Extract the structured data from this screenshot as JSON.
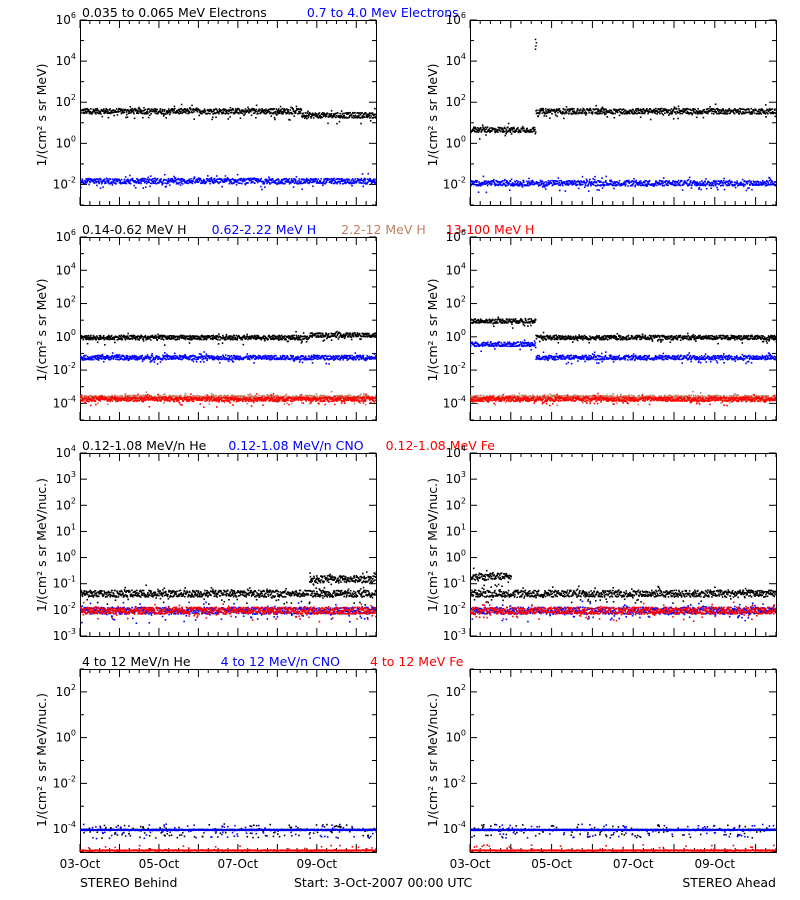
{
  "legends": {
    "electrons": [
      {
        "text": "0.035 to 0.065 MeV Electrons",
        "color": "#000000"
      },
      {
        "text": "0.7 to 4.0 Mev Electrons",
        "color": "#0000ff"
      }
    ],
    "protons": [
      {
        "text": "0.14-0.62 MeV H",
        "color": "#000000"
      },
      {
        "text": "0.62-2.22 MeV H",
        "color": "#0000ff"
      },
      {
        "text": "2.2-12 MeV H",
        "color": "#c08060"
      },
      {
        "text": "13-100 MeV H",
        "color": "#ff0000"
      }
    ],
    "low_ions": [
      {
        "text": "0.12-1.08 MeV/n He",
        "color": "#000000"
      },
      {
        "text": "0.12-1.08 MeV/n CNO",
        "color": "#0000ff"
      },
      {
        "text": "0.12-1.08 MeV Fe",
        "color": "#ff0000"
      }
    ],
    "high_ions": [
      {
        "text": "4 to 12 MeV/n He",
        "color": "#000000"
      },
      {
        "text": "4 to 12 MeV/n CNO",
        "color": "#0000ff"
      },
      {
        "text": "4 to 12 MeV Fe",
        "color": "#ff0000"
      }
    ]
  },
  "ylabels": {
    "rows_1_2": "1/(cm² s sr MeV)",
    "rows_3_4": "1/(cm² s sr MeV/nuc.)"
  },
  "footer": {
    "left": "STEREO Behind",
    "center": "Start:  3-Oct-2007 00:00 UTC",
    "right": "STEREO Ahead"
  },
  "colors": {
    "black": "#000000",
    "blue": "#0000ff",
    "tan": "#c08060",
    "red": "#ff0000"
  },
  "chart_data": [
    {
      "id": "behind-electrons",
      "type": "scatter",
      "log_y": true,
      "ylim_exp": [
        -3,
        6
      ],
      "y_tick_exponents": [
        -2,
        0,
        2,
        4,
        6
      ],
      "x": [
        "03-Oct",
        "05-Oct",
        "07-Oct",
        "09-Oct"
      ],
      "xlim_days": [
        0,
        7.5
      ],
      "series": [
        {
          "name": "0.035 to 0.065 MeV Electrons",
          "color": "#000000",
          "approx_values": [
            {
              "day_range": [
                0,
                5.6
              ],
              "log10_flux": 1.6
            },
            {
              "day_range": [
                5.6,
                7.5
              ],
              "log10_flux": 1.4
            }
          ]
        },
        {
          "name": "0.7 to 4.0 Mev Electrons",
          "color": "#0000ff",
          "approx_values": [
            {
              "day_range": [
                0,
                7.5
              ],
              "log10_flux": -1.8
            }
          ]
        }
      ]
    },
    {
      "id": "ahead-electrons",
      "type": "scatter",
      "log_y": true,
      "ylim_exp": [
        -3,
        6
      ],
      "y_tick_exponents": [
        -2,
        0,
        2,
        4,
        6
      ],
      "x": [
        "03-Oct",
        "05-Oct",
        "07-Oct",
        "09-Oct"
      ],
      "xlim_days": [
        0,
        7.5
      ],
      "series": [
        {
          "name": "0.035 to 0.065 MeV Electrons",
          "color": "#000000",
          "approx_values": [
            {
              "day_range": [
                0,
                1.6
              ],
              "log10_flux": 0.7
            },
            {
              "day_range": [
                1.6,
                7.5
              ],
              "log10_flux": 1.6
            },
            {
              "day": 1.6,
              "log10_flux": 5.0
            }
          ]
        },
        {
          "name": "0.7 to 4.0 Mev Electrons",
          "color": "#0000ff",
          "approx_values": [
            {
              "day_range": [
                0,
                7.5
              ],
              "log10_flux": -1.9
            }
          ]
        }
      ]
    },
    {
      "id": "behind-protons",
      "type": "scatter",
      "log_y": true,
      "ylim_exp": [
        -5,
        6
      ],
      "y_tick_exponents": [
        -4,
        -2,
        0,
        2,
        4,
        6
      ],
      "x": [
        "03-Oct",
        "05-Oct",
        "07-Oct",
        "09-Oct"
      ],
      "xlim_days": [
        0,
        7.5
      ],
      "series": [
        {
          "name": "0.14-0.62 MeV H",
          "color": "#000000",
          "approx_values": [
            {
              "day_range": [
                0,
                5.8
              ],
              "log10_flux": 0.0
            },
            {
              "day_range": [
                5.8,
                7.5
              ],
              "log10_flux": 0.15
            }
          ]
        },
        {
          "name": "0.62-2.22 MeV H",
          "color": "#0000ff",
          "approx_values": [
            {
              "day_range": [
                0,
                7.5
              ],
              "log10_flux": -1.2
            }
          ]
        },
        {
          "name": "2.2-12 MeV H",
          "color": "#c08060",
          "approx_values": [
            {
              "day_range": [
                0,
                7.5
              ],
              "log10_flux": -3.6
            }
          ]
        },
        {
          "name": "13-100 MeV H",
          "color": "#ff0000",
          "approx_values": [
            {
              "day_range": [
                0,
                7.5
              ],
              "log10_flux": -3.7
            }
          ]
        }
      ]
    },
    {
      "id": "ahead-protons",
      "type": "scatter",
      "log_y": true,
      "ylim_exp": [
        -5,
        6
      ],
      "y_tick_exponents": [
        -4,
        -2,
        0,
        2,
        4,
        6
      ],
      "x": [
        "03-Oct",
        "05-Oct",
        "07-Oct",
        "09-Oct"
      ],
      "xlim_days": [
        0,
        7.5
      ],
      "series": [
        {
          "name": "0.14-0.62 MeV H",
          "color": "#000000",
          "approx_values": [
            {
              "day_range": [
                0,
                1.6
              ],
              "log10_flux": 1.0
            },
            {
              "day_range": [
                1.6,
                7.5
              ],
              "log10_flux": 0.0
            }
          ]
        },
        {
          "name": "0.62-2.22 MeV H",
          "color": "#0000ff",
          "approx_values": [
            {
              "day_range": [
                0,
                1.6
              ],
              "log10_flux": -0.4
            },
            {
              "day_range": [
                1.6,
                7.5
              ],
              "log10_flux": -1.2
            }
          ]
        },
        {
          "name": "2.2-12 MeV H",
          "color": "#c08060",
          "approx_values": [
            {
              "day_range": [
                0,
                7.5
              ],
              "log10_flux": -3.6
            }
          ]
        },
        {
          "name": "13-100 MeV H",
          "color": "#ff0000",
          "approx_values": [
            {
              "day_range": [
                0,
                7.5
              ],
              "log10_flux": -3.7
            }
          ]
        }
      ]
    },
    {
      "id": "behind-low-ions",
      "type": "scatter",
      "log_y": true,
      "ylim_exp": [
        -3,
        4
      ],
      "y_tick_exponents": [
        -3,
        -2,
        -1,
        0,
        1,
        2,
        3,
        4
      ],
      "x": [
        "03-Oct",
        "05-Oct",
        "07-Oct",
        "09-Oct"
      ],
      "xlim_days": [
        0,
        7.5
      ],
      "series": [
        {
          "name": "0.12-1.08 MeV/n He",
          "color": "#000000",
          "approx_values": [
            {
              "day_range": [
                0,
                7.5
              ],
              "log10_flux": -1.35
            },
            {
              "day_range": [
                5.8,
                7.5
              ],
              "log10_flux": -0.8
            }
          ]
        },
        {
          "name": "0.12-1.08 MeV/n CNO",
          "color": "#0000ff",
          "approx_values": [
            {
              "day_range": [
                0,
                7.5
              ],
              "log10_flux": -2.0
            }
          ]
        },
        {
          "name": "0.12-1.08 MeV Fe",
          "color": "#ff0000",
          "approx_values": [
            {
              "day_range": [
                0,
                7.5
              ],
              "log10_flux": -2.0
            }
          ]
        }
      ]
    },
    {
      "id": "ahead-low-ions",
      "type": "scatter",
      "log_y": true,
      "ylim_exp": [
        -3,
        4
      ],
      "y_tick_exponents": [
        -3,
        -2,
        -1,
        0,
        1,
        2,
        3,
        4
      ],
      "x": [
        "03-Oct",
        "05-Oct",
        "07-Oct",
        "09-Oct"
      ],
      "xlim_days": [
        0,
        7.5
      ],
      "series": [
        {
          "name": "0.12-1.08 MeV/n He",
          "color": "#000000",
          "approx_values": [
            {
              "day_range": [
                0,
                1.0
              ],
              "log10_flux": -0.7
            },
            {
              "day_range": [
                0,
                7.5
              ],
              "log10_flux": -1.35
            }
          ]
        },
        {
          "name": "0.12-1.08 MeV/n CNO",
          "color": "#0000ff",
          "approx_values": [
            {
              "day_range": [
                0,
                7.5
              ],
              "log10_flux": -2.0
            }
          ]
        },
        {
          "name": "0.12-1.08 MeV Fe",
          "color": "#ff0000",
          "approx_values": [
            {
              "day_range": [
                0,
                7.5
              ],
              "log10_flux": -2.0
            }
          ]
        }
      ]
    },
    {
      "id": "behind-high-ions",
      "type": "scatter",
      "log_y": true,
      "ylim_exp": [
        -5,
        3
      ],
      "y_tick_exponents": [
        -4,
        -2,
        0,
        2
      ],
      "x": [
        "03-Oct",
        "05-Oct",
        "07-Oct",
        "09-Oct"
      ],
      "xlim_days": [
        0,
        7.5
      ],
      "series": [
        {
          "name": "4 to 12 MeV/n He",
          "color": "#000000",
          "approx_values": [
            {
              "day_range": [
                0,
                7.5
              ],
              "log10_flux": -4.0
            }
          ]
        },
        {
          "name": "4 to 12 MeV/n CNO",
          "color": "#0000ff",
          "approx_values": [
            {
              "day_range": [
                0,
                7.5
              ],
              "log10_flux": -4.0
            }
          ]
        },
        {
          "name": "4 to 12 MeV Fe",
          "color": "#ff0000",
          "approx_values": [
            {
              "day_range": [
                0,
                7.5
              ],
              "log10_flux": -4.9
            }
          ]
        }
      ]
    },
    {
      "id": "ahead-high-ions",
      "type": "scatter",
      "log_y": true,
      "ylim_exp": [
        -5,
        3
      ],
      "y_tick_exponents": [
        -4,
        -2,
        0,
        2
      ],
      "x": [
        "03-Oct",
        "05-Oct",
        "07-Oct",
        "09-Oct"
      ],
      "xlim_days": [
        0,
        7.5
      ],
      "series": [
        {
          "name": "4 to 12 MeV/n He",
          "color": "#000000",
          "approx_values": [
            {
              "day_range": [
                0,
                7.5
              ],
              "log10_flux": -4.0
            }
          ]
        },
        {
          "name": "4 to 12 MeV/n CNO",
          "color": "#0000ff",
          "approx_values": [
            {
              "day_range": [
                0,
                7.5
              ],
              "log10_flux": -4.0
            }
          ]
        },
        {
          "name": "4 to 12 MeV Fe",
          "color": "#ff0000",
          "approx_values": [
            {
              "day_range": [
                0,
                7.5
              ],
              "log10_flux": -4.9
            }
          ]
        }
      ]
    }
  ]
}
